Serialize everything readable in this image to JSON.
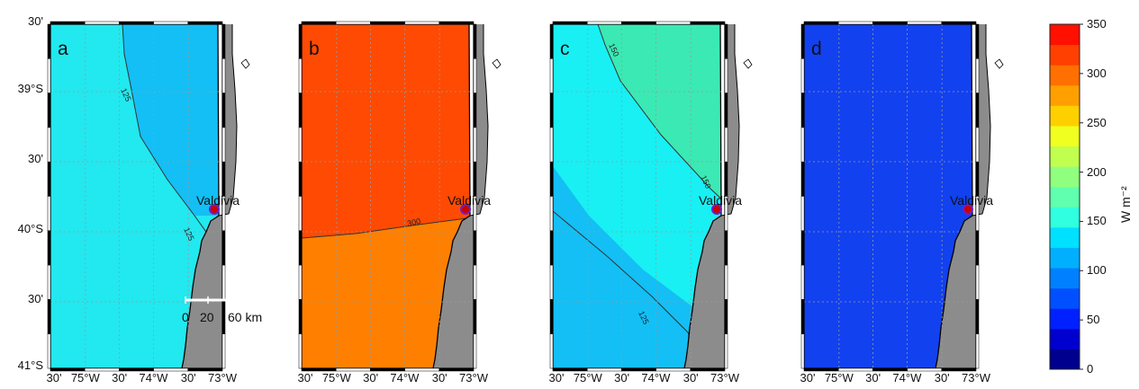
{
  "panels": [
    {
      "letter": "a",
      "regions": [
        {
          "name": "low",
          "color": "#22e8ef"
        },
        {
          "name": "high",
          "color": "#13bff5"
        }
      ],
      "contours": [
        "125",
        "125"
      ],
      "scale_bar": true
    },
    {
      "letter": "b",
      "regions": [
        {
          "name": "high",
          "color": "#ff4a03"
        },
        {
          "name": "low",
          "color": "#ff8000"
        }
      ],
      "contours": [
        "300"
      ],
      "scale_bar": false
    },
    {
      "letter": "c",
      "regions": [
        {
          "name": "high",
          "color": "#3be9b4"
        },
        {
          "name": "mid",
          "color": "#18f0f4"
        },
        {
          "name": "low",
          "color": "#13bff5"
        }
      ],
      "contours": [
        "150",
        "150",
        "125"
      ],
      "scale_bar": false
    },
    {
      "letter": "d",
      "regions": [
        {
          "name": "uniform",
          "color": "#1241f0"
        }
      ],
      "contours": [],
      "scale_bar": false
    }
  ],
  "y_labels": [
    "30'",
    "39°S",
    "30'",
    "40°S",
    "30'",
    "41°S"
  ],
  "x_labels": [
    "30'",
    "75°W",
    "30'",
    "74°W",
    "30'",
    "73°W"
  ],
  "city_label": "Valdivia",
  "scale_bar": {
    "labels": [
      "0",
      "20",
      "60 km"
    ]
  },
  "colorbar": {
    "title": "W m⁻²",
    "ticks": [
      "350",
      "300",
      "250",
      "200",
      "150",
      "100",
      "50",
      "0"
    ],
    "colors": [
      "#00008f",
      "#0000cf",
      "#0020ff",
      "#0050ff",
      "#0080ff",
      "#00b0ff",
      "#00e0ff",
      "#30ffe0",
      "#60ffb0",
      "#90ff80",
      "#c0ff50",
      "#f0ff20",
      "#ffd000",
      "#ffa000",
      "#ff7000",
      "#ff4000",
      "#ff1000"
    ]
  },
  "colors": {
    "land": "#8c8c8c",
    "sea_white": "#ffffff",
    "coast": "#000000",
    "city": "#cc0000",
    "city_ring": "#6a22c8"
  }
}
